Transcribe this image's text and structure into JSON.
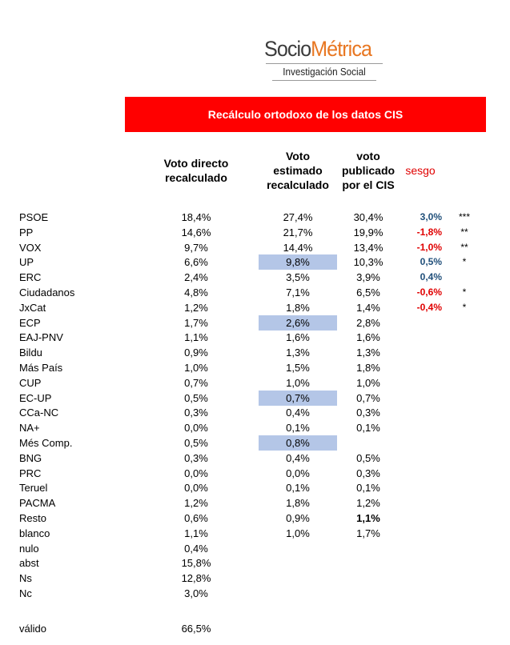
{
  "logo": {
    "word_main": "Socio",
    "word_accent": "Métrica",
    "subtitle": "Investigación Social",
    "accent_color": "#e87722"
  },
  "banner": {
    "title": "Recálculo ortodoxo de los datos CIS",
    "color": "#ff0000"
  },
  "headers": {
    "col1": [
      "Voto directo",
      "recalculado"
    ],
    "col2": [
      "Voto",
      "estimado",
      "recalculado"
    ],
    "col3": [
      "voto",
      "publicado",
      "por el CIS"
    ],
    "sesgo": "sesgo"
  },
  "highlight_color": "#b4c6e7",
  "rows": [
    {
      "party": "PSOE",
      "direct": "18,4%",
      "estimated": "27,4%",
      "published": "30,4%",
      "sesgo": "3,0%",
      "sign": "pos",
      "stars": "***",
      "highlight": false
    },
    {
      "party": "PP",
      "direct": "14,6%",
      "estimated": "21,7%",
      "published": "19,9%",
      "sesgo": "-1,8%",
      "sign": "neg",
      "stars": "**",
      "highlight": false
    },
    {
      "party": "VOX",
      "direct": "9,7%",
      "estimated": "14,4%",
      "published": "13,4%",
      "sesgo": "-1,0%",
      "sign": "neg",
      "stars": "**",
      "highlight": false
    },
    {
      "party": "UP",
      "direct": "6,6%",
      "estimated": "9,8%",
      "published": "10,3%",
      "sesgo": "0,5%",
      "sign": "pos",
      "stars": "*",
      "highlight": true
    },
    {
      "party": "ERC",
      "direct": "2,4%",
      "estimated": "3,5%",
      "published": "3,9%",
      "sesgo": "0,4%",
      "sign": "pos",
      "stars": "",
      "highlight": false
    },
    {
      "party": "Ciudadanos",
      "direct": "4,8%",
      "estimated": "7,1%",
      "published": "6,5%",
      "sesgo": "-0,6%",
      "sign": "neg",
      "stars": "*",
      "highlight": false
    },
    {
      "party": "JxCat",
      "direct": "1,2%",
      "estimated": "1,8%",
      "published": "1,4%",
      "sesgo": "-0,4%",
      "sign": "neg",
      "stars": "*",
      "highlight": false
    },
    {
      "party": "ECP",
      "direct": "1,7%",
      "estimated": "2,6%",
      "published": "2,8%",
      "sesgo": "",
      "sign": "",
      "stars": "",
      "highlight": true
    },
    {
      "party": "EAJ-PNV",
      "direct": "1,1%",
      "estimated": "1,6%",
      "published": "1,6%",
      "sesgo": "",
      "sign": "",
      "stars": "",
      "highlight": false
    },
    {
      "party": "Bildu",
      "direct": "0,9%",
      "estimated": "1,3%",
      "published": "1,3%",
      "sesgo": "",
      "sign": "",
      "stars": "",
      "highlight": false
    },
    {
      "party": "Más País",
      "direct": "1,0%",
      "estimated": "1,5%",
      "published": "1,8%",
      "sesgo": "",
      "sign": "",
      "stars": "",
      "highlight": false
    },
    {
      "party": "CUP",
      "direct": "0,7%",
      "estimated": "1,0%",
      "published": "1,0%",
      "sesgo": "",
      "sign": "",
      "stars": "",
      "highlight": false
    },
    {
      "party": "EC-UP",
      "direct": "0,5%",
      "estimated": "0,7%",
      "published": "0,7%",
      "sesgo": "",
      "sign": "",
      "stars": "",
      "highlight": true
    },
    {
      "party": "CCa-NC",
      "direct": "0,3%",
      "estimated": "0,4%",
      "published": "0,3%",
      "sesgo": "",
      "sign": "",
      "stars": "",
      "highlight": false
    },
    {
      "party": "NA+",
      "direct": "0,0%",
      "estimated": "0,1%",
      "published": "0,1%",
      "sesgo": "",
      "sign": "",
      "stars": "",
      "highlight": false
    },
    {
      "party": "Més Comp.",
      "direct": "0,5%",
      "estimated": "0,8%",
      "published": "",
      "sesgo": "",
      "sign": "",
      "stars": "",
      "highlight": true
    },
    {
      "party": "BNG",
      "direct": "0,3%",
      "estimated": "0,4%",
      "published": "0,5%",
      "sesgo": "",
      "sign": "",
      "stars": "",
      "highlight": false
    },
    {
      "party": "PRC",
      "direct": "0,0%",
      "estimated": "0,0%",
      "published": "0,3%",
      "sesgo": "",
      "sign": "",
      "stars": "",
      "highlight": false
    },
    {
      "party": "Teruel",
      "direct": "0,0%",
      "estimated": "0,1%",
      "published": "0,1%",
      "sesgo": "",
      "sign": "",
      "stars": "",
      "highlight": false
    },
    {
      "party": "PACMA",
      "direct": "1,2%",
      "estimated": "1,8%",
      "published": "1,2%",
      "sesgo": "",
      "sign": "",
      "stars": "",
      "highlight": false
    },
    {
      "party": "Resto",
      "direct": "0,6%",
      "estimated": "0,9%",
      "published": "1,1%",
      "sesgo": "",
      "sign": "",
      "stars": "",
      "highlight": false,
      "published_bold": true
    },
    {
      "party": "blanco",
      "direct": "1,1%",
      "estimated": "1,0%",
      "published": "1,7%",
      "sesgo": "",
      "sign": "",
      "stars": "",
      "highlight": false
    },
    {
      "party": "nulo",
      "direct": "0,4%",
      "estimated": "",
      "published": "",
      "sesgo": "",
      "sign": "",
      "stars": "",
      "highlight": false
    },
    {
      "party": "abst",
      "direct": "15,8%",
      "estimated": "",
      "published": "",
      "sesgo": "",
      "sign": "",
      "stars": "",
      "highlight": false
    },
    {
      "party": "Ns",
      "direct": "12,8%",
      "estimated": "",
      "published": "",
      "sesgo": "",
      "sign": "",
      "stars": "",
      "highlight": false
    },
    {
      "party": "Nc",
      "direct": "3,0%",
      "estimated": "",
      "published": "",
      "sesgo": "",
      "sign": "",
      "stars": "",
      "highlight": false
    }
  ],
  "valido": {
    "label": "válido",
    "value": "66,5%"
  }
}
